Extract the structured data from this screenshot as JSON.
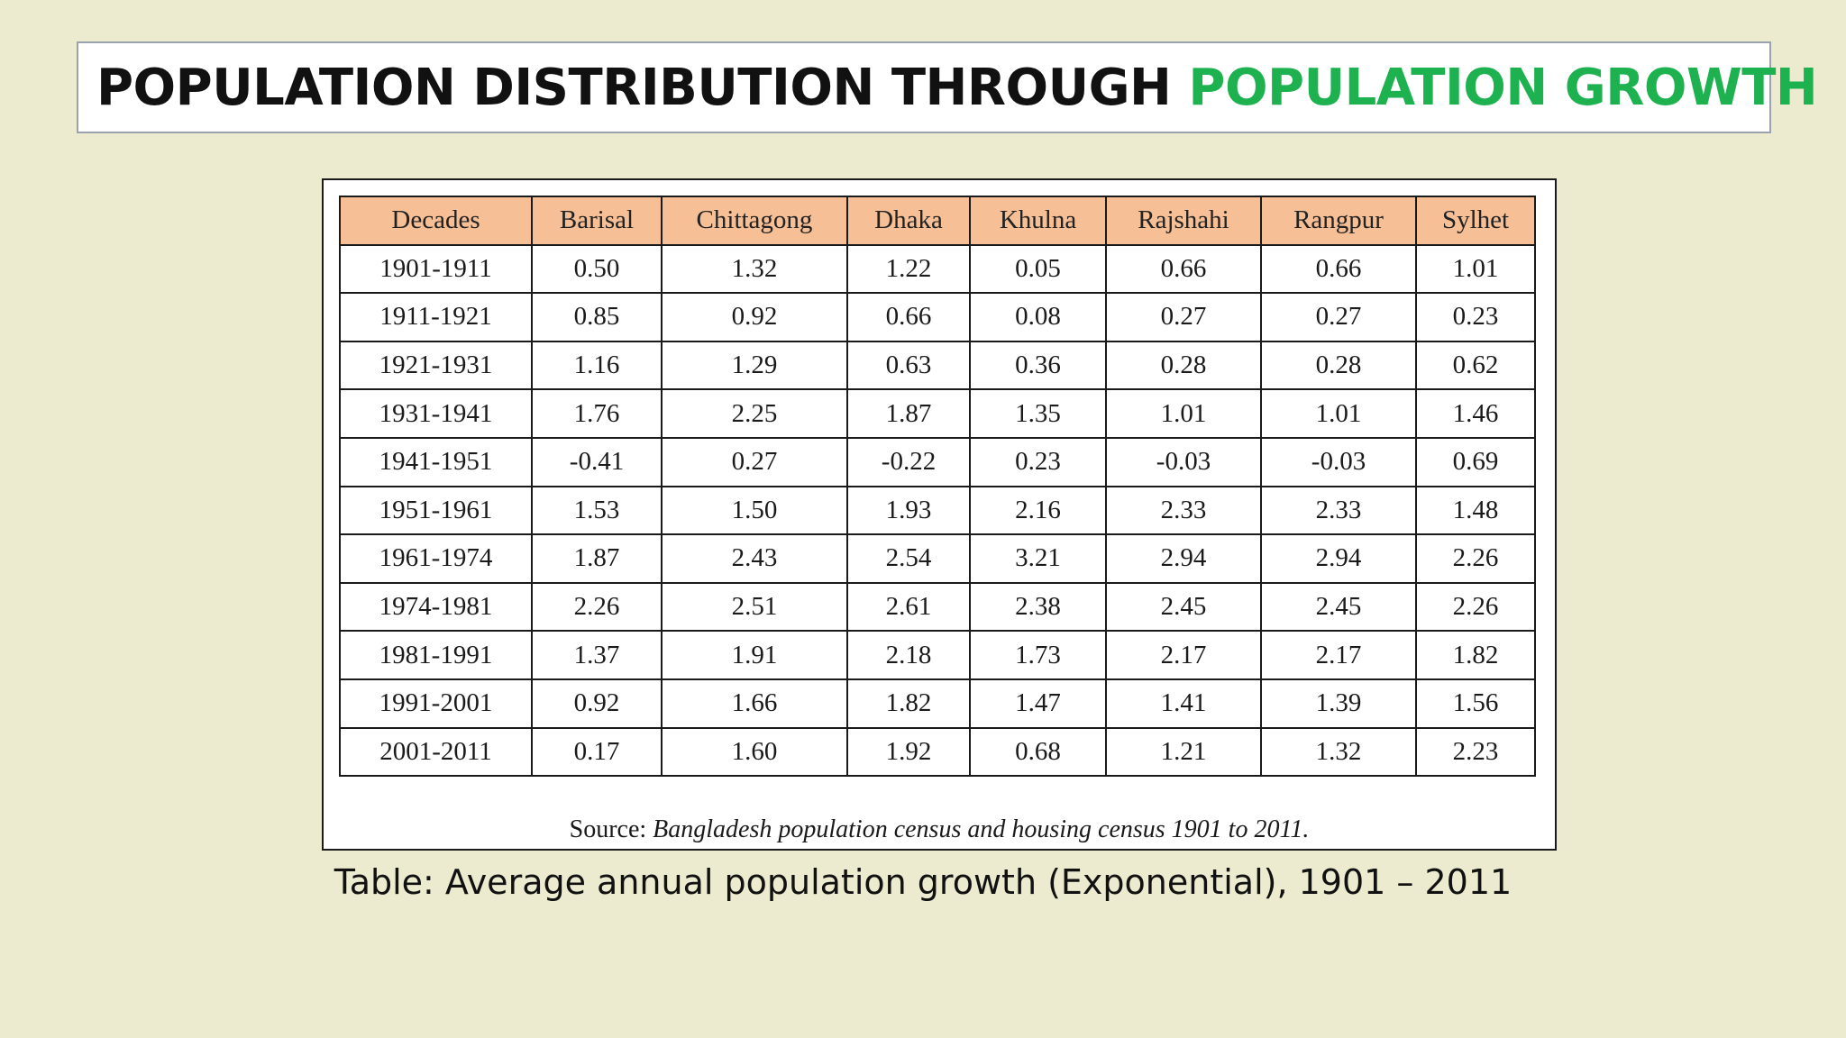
{
  "slide": {
    "title_part1": "POPULATION DISTRIBUTION THROUGH ",
    "title_part2": "POPULATION GROWTH",
    "accent_color": "#1db150",
    "header_fill_color": "#f6bf95",
    "background_color": "#ecebd0"
  },
  "table": {
    "headers": [
      "Decades",
      "Barisal",
      "Chittagong",
      "Dhaka",
      "Khulna",
      "Rajshahi",
      "Rangpur",
      "Sylhet"
    ],
    "rows": [
      [
        "1901-1911",
        "0.50",
        "1.32",
        "1.22",
        "0.05",
        "0.66",
        "0.66",
        "1.01"
      ],
      [
        "1911-1921",
        "0.85",
        "0.92",
        "0.66",
        "0.08",
        "0.27",
        "0.27",
        "0.23"
      ],
      [
        "1921-1931",
        "1.16",
        "1.29",
        "0.63",
        "0.36",
        "0.28",
        "0.28",
        "0.62"
      ],
      [
        "1931-1941",
        "1.76",
        "2.25",
        "1.87",
        "1.35",
        "1.01",
        "1.01",
        "1.46"
      ],
      [
        "1941-1951",
        "-0.41",
        "0.27",
        "-0.22",
        "0.23",
        "-0.03",
        "-0.03",
        "0.69"
      ],
      [
        "1951-1961",
        "1.53",
        "1.50",
        "1.93",
        "2.16",
        "2.33",
        "2.33",
        "1.48"
      ],
      [
        "1961-1974",
        "1.87",
        "2.43",
        "2.54",
        "3.21",
        "2.94",
        "2.94",
        "2.26"
      ],
      [
        "1974-1981",
        "2.26",
        "2.51",
        "2.61",
        "2.38",
        "2.45",
        "2.45",
        "2.26"
      ],
      [
        "1981-1991",
        "1.37",
        "1.91",
        "2.18",
        "1.73",
        "2.17",
        "2.17",
        "1.82"
      ],
      [
        "1991-2001",
        "0.92",
        "1.66",
        "1.82",
        "1.47",
        "1.41",
        "1.39",
        "1.56"
      ],
      [
        "2001-2011",
        "0.17",
        "1.60",
        "1.92",
        "0.68",
        "1.21",
        "1.32",
        "2.23"
      ]
    ],
    "source_label": "Source: ",
    "source_text": "Bangladesh population census and housing census 1901 to 2011."
  },
  "caption": "Table: Average annual population growth (Exponential), 1901 – 2011"
}
